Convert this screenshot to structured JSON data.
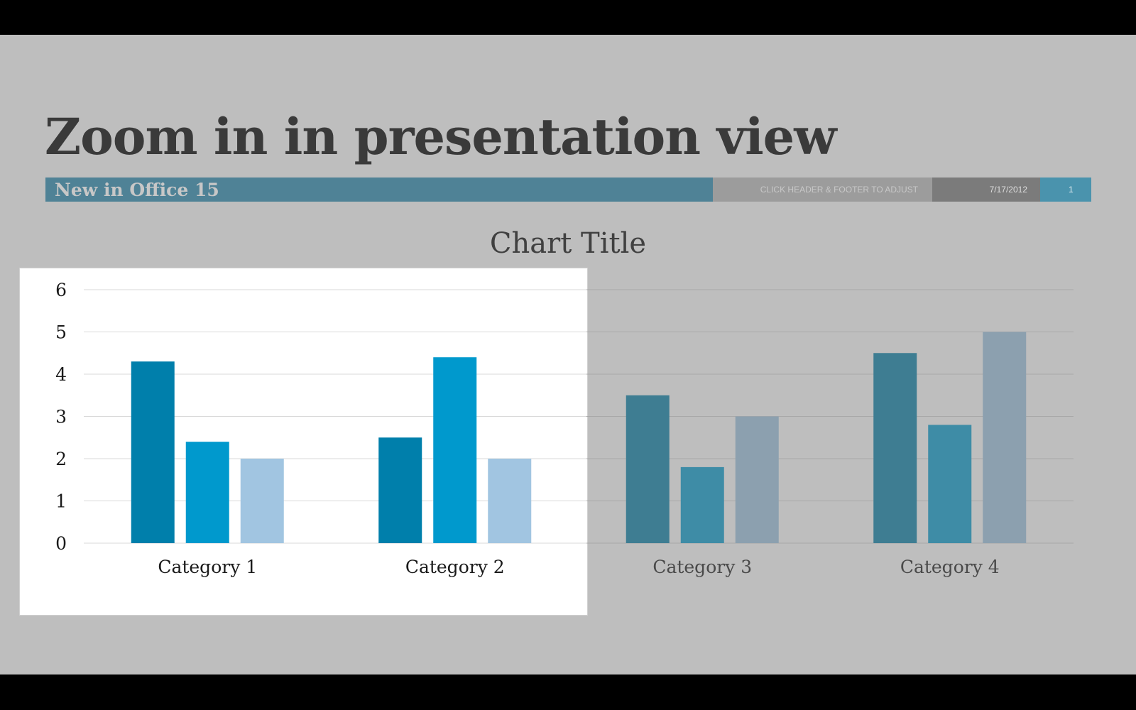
{
  "slide": {
    "title": "Zoom in in presentation view",
    "banner_label": "New in Office 15",
    "footer_text": "CLICK HEADER & FOOTER TO ADJUST",
    "date": "7/17/2012",
    "slide_number": "1"
  },
  "colors": {
    "banner_main": "#4f8296",
    "banner_footer": "#9c9c9c",
    "banner_date": "#7b7b7b",
    "banner_number": "#4a93ad",
    "zoom_series": [
      "#007fab",
      "#0099cd",
      "#a1c5e1"
    ],
    "dimmed_series": [
      "#3e7d92",
      "#3e8ca6",
      "#8ca0af"
    ],
    "zoom_label": "#1a1a1a",
    "dimmed_label": "#4a4a4a"
  },
  "chart_data": {
    "type": "bar",
    "title": "Chart Title",
    "categories": [
      "Category 1",
      "Category 2",
      "Category 3",
      "Category 4"
    ],
    "series": [
      {
        "values": [
          4.3,
          2.5,
          3.5,
          4.5
        ]
      },
      {
        "values": [
          2.4,
          4.4,
          1.8,
          2.8
        ]
      },
      {
        "values": [
          2,
          2,
          3,
          5
        ]
      }
    ],
    "ylim": [
      0,
      6
    ],
    "yticks": [
      "0",
      "1",
      "2",
      "3",
      "4",
      "5",
      "6"
    ],
    "grid": true,
    "zoomed_categories": 2
  }
}
